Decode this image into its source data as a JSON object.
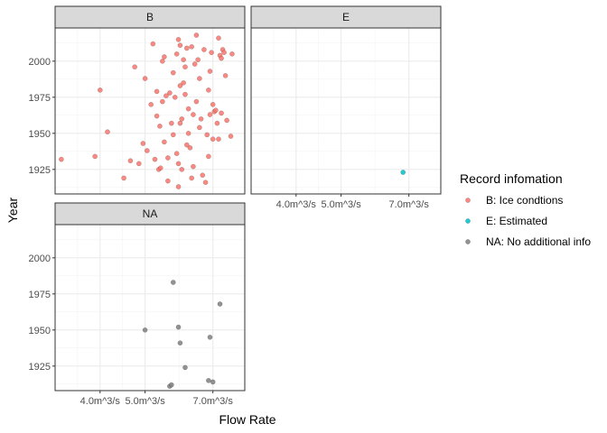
{
  "chart_data": {
    "type": "scatter",
    "facet_by": "Record infomation",
    "xlabel": "Flow Rate",
    "ylabel": "Year",
    "x_scale": "log",
    "x_ticks": [
      {
        "value": 4.0,
        "label": "4.0m^3/s"
      },
      {
        "value": 5.0,
        "label": "5.0m^3/s"
      },
      {
        "value": 7.0,
        "label": "7.0m^3/s"
      }
    ],
    "y_ticks": [
      1925,
      1950,
      1975,
      2000
    ],
    "xlim": [
      3.2,
      8.2
    ],
    "ylim": [
      1908,
      2023
    ],
    "grid": true,
    "legend": {
      "title": "Record infomation",
      "position": "right",
      "entries": [
        {
          "key": "B",
          "label": "B: Ice condtions",
          "color": "#F8766D"
        },
        {
          "key": "E",
          "label": "E: Estimated",
          "color": "#00BFC4"
        },
        {
          "key": "NA",
          "label": "NA: No additional info",
          "color": "#7F7F7F"
        }
      ]
    },
    "panels": [
      {
        "label": "B",
        "color": "#F8766D",
        "points": [
          [
            3.3,
            1932
          ],
          [
            3.9,
            1934
          ],
          [
            4.0,
            1980
          ],
          [
            4.15,
            1951
          ],
          [
            4.5,
            1919
          ],
          [
            4.65,
            1931
          ],
          [
            4.85,
            1929
          ],
          [
            4.75,
            1996
          ],
          [
            4.95,
            1943
          ],
          [
            5.05,
            1938
          ],
          [
            5.0,
            1988
          ],
          [
            5.15,
            1970
          ],
          [
            5.2,
            2012
          ],
          [
            5.25,
            1932
          ],
          [
            5.3,
            1962
          ],
          [
            5.3,
            1979
          ],
          [
            5.35,
            1925
          ],
          [
            5.38,
            1955
          ],
          [
            5.4,
            1926
          ],
          [
            5.45,
            1972
          ],
          [
            5.45,
            2000
          ],
          [
            5.5,
            1944
          ],
          [
            5.5,
            2003
          ],
          [
            5.55,
            1976
          ],
          [
            5.6,
            1933
          ],
          [
            5.6,
            1917
          ],
          [
            5.65,
            1978
          ],
          [
            5.7,
            1957
          ],
          [
            5.75,
            1949
          ],
          [
            5.75,
            1992
          ],
          [
            5.8,
            1975
          ],
          [
            5.85,
            2005
          ],
          [
            5.85,
            1936
          ],
          [
            5.9,
            1929
          ],
          [
            5.9,
            1913
          ],
          [
            5.95,
            1957
          ],
          [
            5.95,
            1983
          ],
          [
            5.9,
            2015
          ],
          [
            6.0,
            1960
          ],
          [
            5.95,
            2011
          ],
          [
            6.0,
            1925
          ],
          [
            6.05,
            1985
          ],
          [
            6.1,
            1977
          ],
          [
            6.05,
            2001
          ],
          [
            6.1,
            1996
          ],
          [
            6.15,
            2009
          ],
          [
            6.15,
            1942
          ],
          [
            6.2,
            1950
          ],
          [
            6.2,
            1967
          ],
          [
            6.25,
            1940
          ],
          [
            6.3,
            1919
          ],
          [
            6.3,
            2010
          ],
          [
            6.35,
            1963
          ],
          [
            6.35,
            1927
          ],
          [
            6.4,
            1998
          ],
          [
            6.45,
            1972
          ],
          [
            6.5,
            2001
          ],
          [
            6.45,
            2018
          ],
          [
            6.55,
            1988
          ],
          [
            6.55,
            1954
          ],
          [
            6.6,
            1960
          ],
          [
            6.65,
            1921
          ],
          [
            6.7,
            2008
          ],
          [
            6.75,
            1916
          ],
          [
            6.8,
            1949
          ],
          [
            6.85,
            1934
          ],
          [
            6.85,
            1980
          ],
          [
            6.9,
            1963
          ],
          [
            6.9,
            1993
          ],
          [
            6.95,
            2006
          ],
          [
            7.0,
            1946
          ],
          [
            7.0,
            1970
          ],
          [
            7.05,
            1965
          ],
          [
            7.1,
            1966
          ],
          [
            7.15,
            1957
          ],
          [
            7.2,
            1946
          ],
          [
            7.2,
            2016
          ],
          [
            7.25,
            2004
          ],
          [
            7.3,
            1964
          ],
          [
            7.3,
            2002
          ],
          [
            7.35,
            2008
          ],
          [
            7.45,
            1990
          ],
          [
            7.4,
            2006
          ],
          [
            7.5,
            1959
          ],
          [
            7.65,
            1948
          ],
          [
            7.7,
            2005
          ]
        ]
      },
      {
        "label": "E",
        "color": "#00BFC4",
        "points": [
          [
            6.8,
            1923
          ]
        ]
      },
      {
        "label": "NA",
        "color": "#7F7F7F",
        "points": [
          [
            5.0,
            1950
          ],
          [
            5.65,
            1911
          ],
          [
            5.7,
            1912
          ],
          [
            5.75,
            1983
          ],
          [
            5.9,
            1952
          ],
          [
            5.95,
            1941
          ],
          [
            6.1,
            1924
          ],
          [
            6.85,
            1915
          ],
          [
            6.9,
            1945
          ],
          [
            7.0,
            1914
          ],
          [
            7.25,
            1968
          ]
        ]
      }
    ]
  }
}
